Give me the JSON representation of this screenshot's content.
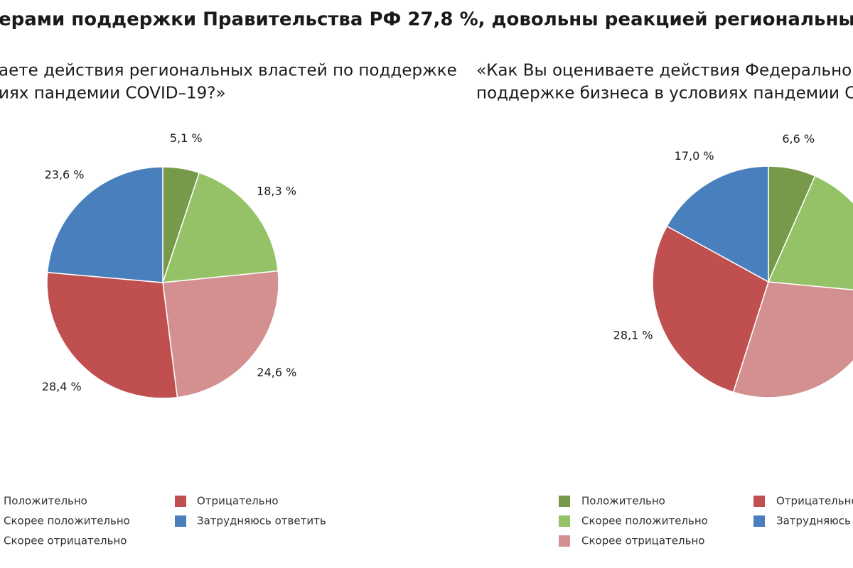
{
  "header": {
    "title": "ерами поддержки Правительства РФ 27,8 %, довольны реакцией региональных власте"
  },
  "chart_data": [
    {
      "type": "pie",
      "title": [
        "аете действия региональных властей по поддержке",
        "иях пандемии COVID–19?»"
      ],
      "categories": [
        "Положительно",
        "Скорее положительно",
        "Скорее отрицательно",
        "Отрицательно",
        "Затрудняюсь ответить"
      ],
      "values": [
        5.1,
        18.3,
        24.6,
        28.4,
        23.6
      ],
      "value_labels": [
        "5,1 %",
        "18,3 %",
        "24,6 %",
        "28,4 %",
        "23,6 %"
      ],
      "colors": [
        "#77994a",
        "#96c267",
        "#d49090",
        "#c0504f",
        "#4a7fbd"
      ]
    },
    {
      "type": "pie",
      "title": [
        "«Как Вы оцениваете действия Федерального П",
        "поддержке бизнеса в условиях пандемии COVID"
      ],
      "categories": [
        "Положительно",
        "Скорее положительно",
        "Скорее отрицательно",
        "Отрицательно",
        "Затрудняюсь ответить"
      ],
      "values": [
        6.6,
        19.9,
        28.4,
        28.1,
        17.0
      ],
      "value_labels": [
        "6,6 %",
        null,
        null,
        "28,1 %",
        "17,0 %"
      ],
      "colors": [
        "#77994a",
        "#96c267",
        "#d49090",
        "#c0504f",
        "#4a7fbd"
      ]
    }
  ]
}
